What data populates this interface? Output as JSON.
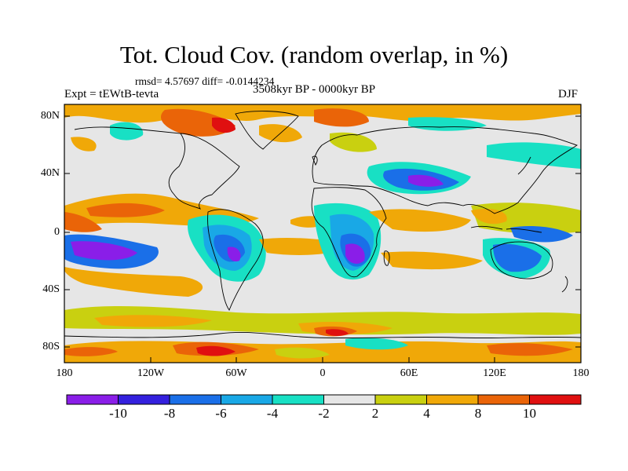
{
  "title": "Tot. Cloud Cov. (random overlap, in %)",
  "stats": {
    "text": "rmsd= 4.57697  diff= -0.0144234"
  },
  "subtitle_left": "Expt = tEWtB-tevta",
  "subtitle_center": "3508kyr BP - 0000kyr BP",
  "subtitle_right": "DJF",
  "axes": {
    "y_labels": [
      "80N",
      "40N",
      "0",
      "40S",
      "80S"
    ],
    "x_labels": [
      "180",
      "120W",
      "60W",
      "0",
      "60E",
      "120E",
      "180"
    ]
  },
  "colorbar": {
    "labels": [
      "-10",
      "-8",
      "-6",
      "-4",
      "-2",
      "2",
      "4",
      "8",
      "10"
    ],
    "colors": [
      "#8a1ee8",
      "#3420de",
      "#1a6fe8",
      "#19a8e6",
      "#18e0c4",
      "#e6e6e6",
      "#c9d010",
      "#f0a808",
      "#ea6408",
      "#e01010"
    ]
  },
  "map": {
    "projection": "cylindrical equidistant",
    "lon_range": [
      -180,
      180
    ],
    "lat_range": [
      -90,
      90
    ]
  },
  "chart_data": {
    "type": "heatmap",
    "title": "Tot. Cloud Cov. (random overlap, in %)",
    "x_ticks": [
      "180",
      "120W",
      "60W",
      "0",
      "60E",
      "120E",
      "180"
    ],
    "y_ticks": [
      "80N",
      "40N",
      "0",
      "40S",
      "80S"
    ],
    "contour_levels": [
      -10,
      -8,
      -6,
      -4,
      -2,
      2,
      4,
      8,
      10
    ],
    "season": "DJF",
    "rmsd": 4.57697,
    "diff": -0.0144234
  }
}
